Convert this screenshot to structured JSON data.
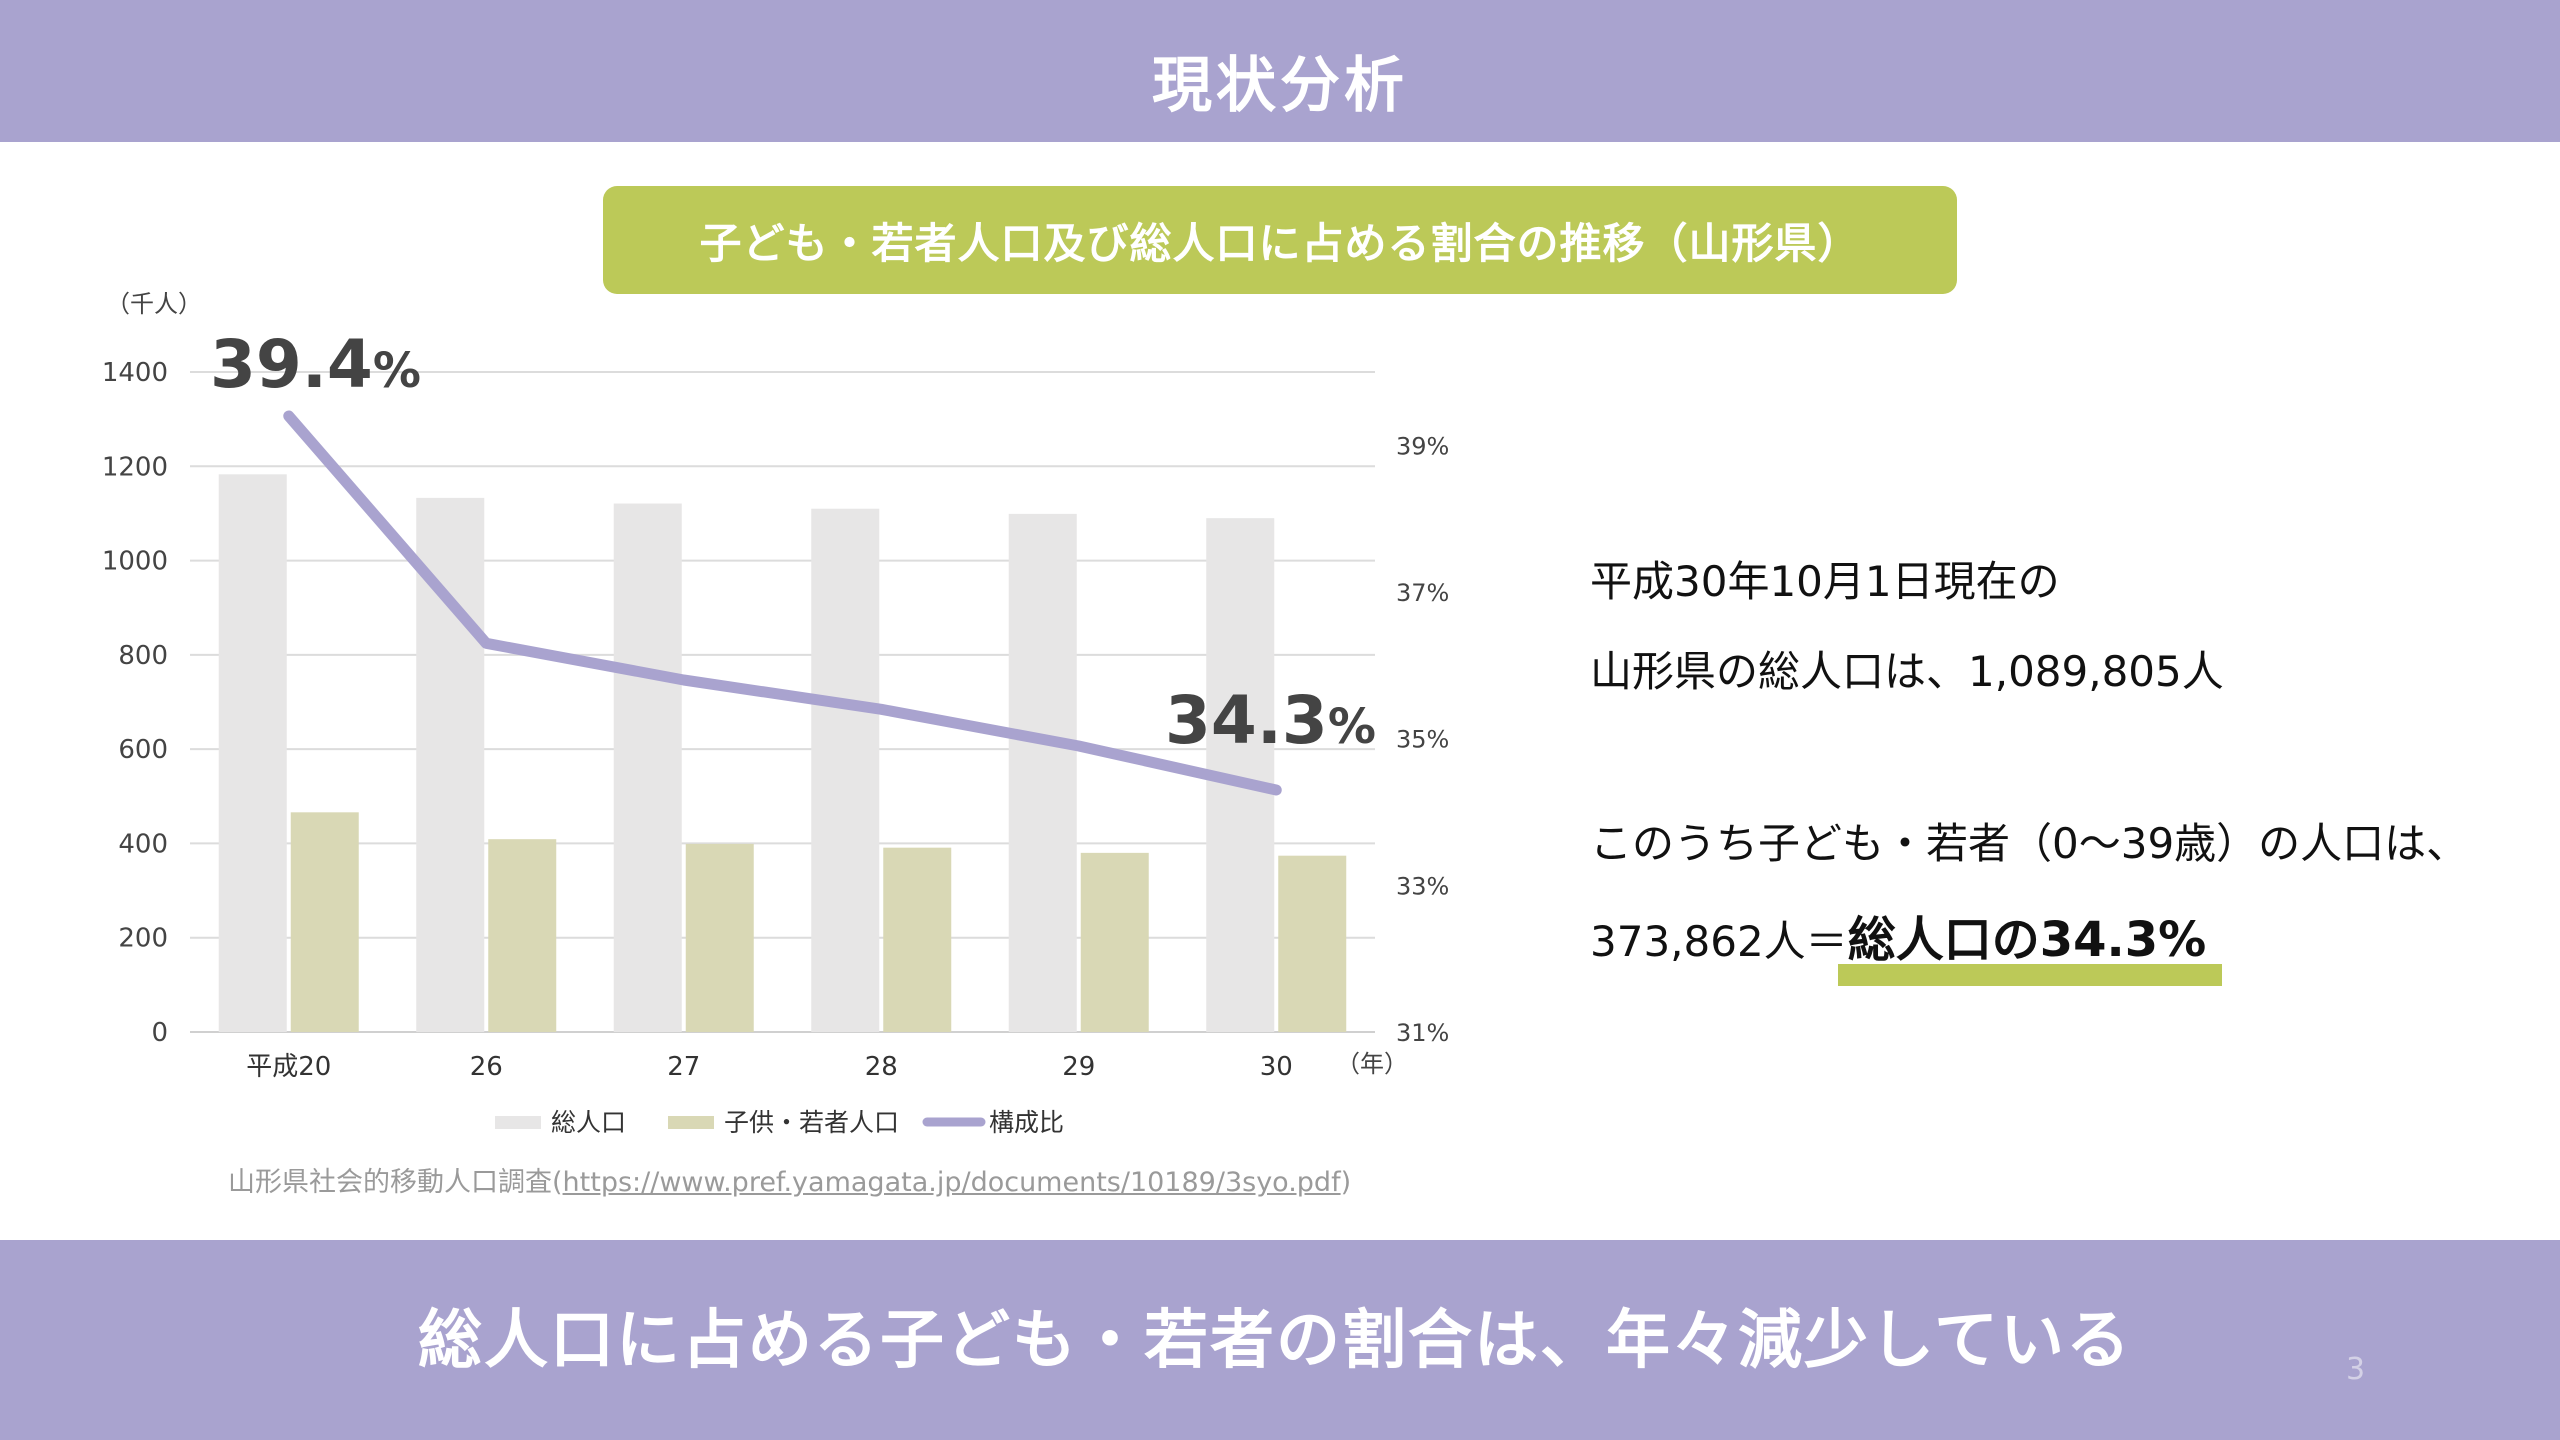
{
  "header": {
    "title": "現状分析"
  },
  "chart_title": "子ども・若者人口及び総人口に占める割合の推移（山形県）",
  "chart_data": {
    "type": "bar",
    "categories": [
      "平成20",
      "26",
      "27",
      "28",
      "29",
      "30"
    ],
    "x_unit": "（年）",
    "series": [
      {
        "name": "総人口",
        "type": "bar",
        "color": "#e7e6e6",
        "values": [
          1183,
          1133,
          1121,
          1110,
          1099,
          1090
        ]
      },
      {
        "name": "子供・若者人口",
        "type": "bar",
        "color": "#d9d8b5",
        "values": [
          466,
          409,
          399,
          391,
          380,
          374
        ]
      },
      {
        "name": "構成比",
        "type": "line",
        "color": "#a9a3cf",
        "axis": "right",
        "values": [
          39.4,
          36.3,
          35.8,
          35.4,
          34.9,
          34.3
        ]
      }
    ],
    "y_unit": "（千人）",
    "ylim": [
      0,
      1400
    ],
    "y_ticks": [
      "0",
      "200",
      "400",
      "600",
      "800",
      "1000",
      "1200",
      "1400"
    ],
    "y2lim": [
      31,
      40
    ],
    "y2_ticks": [
      "31%",
      "33%",
      "35%",
      "37%",
      "39%"
    ],
    "annotations": [
      {
        "num": "39.4",
        "suffix": "%"
      },
      {
        "num": "34.3",
        "suffix": "%"
      }
    ],
    "grid": true,
    "legend_position": "bottom"
  },
  "source": {
    "prefix": "山形県社会的移動人口調査(",
    "link": "https://www.pref.yamagata.jp/documents/10189/3syo.pdf",
    "suffix": ")"
  },
  "info": {
    "line1": "平成30年10月1日現在の",
    "line2": "山形県の総人口は、1,089,805人",
    "line3": "このうち子ども・若者（0～39歳）の人口は、",
    "line4_prefix": "373,862人＝",
    "line4_emphasis": "総人口の34.3%"
  },
  "footer": {
    "message": "総人口に占める子ども・若者の割合は、年々減少している",
    "page_number": "3"
  },
  "colors": {
    "accent_purple": "#a9a3cf",
    "accent_green": "#bcc958"
  }
}
